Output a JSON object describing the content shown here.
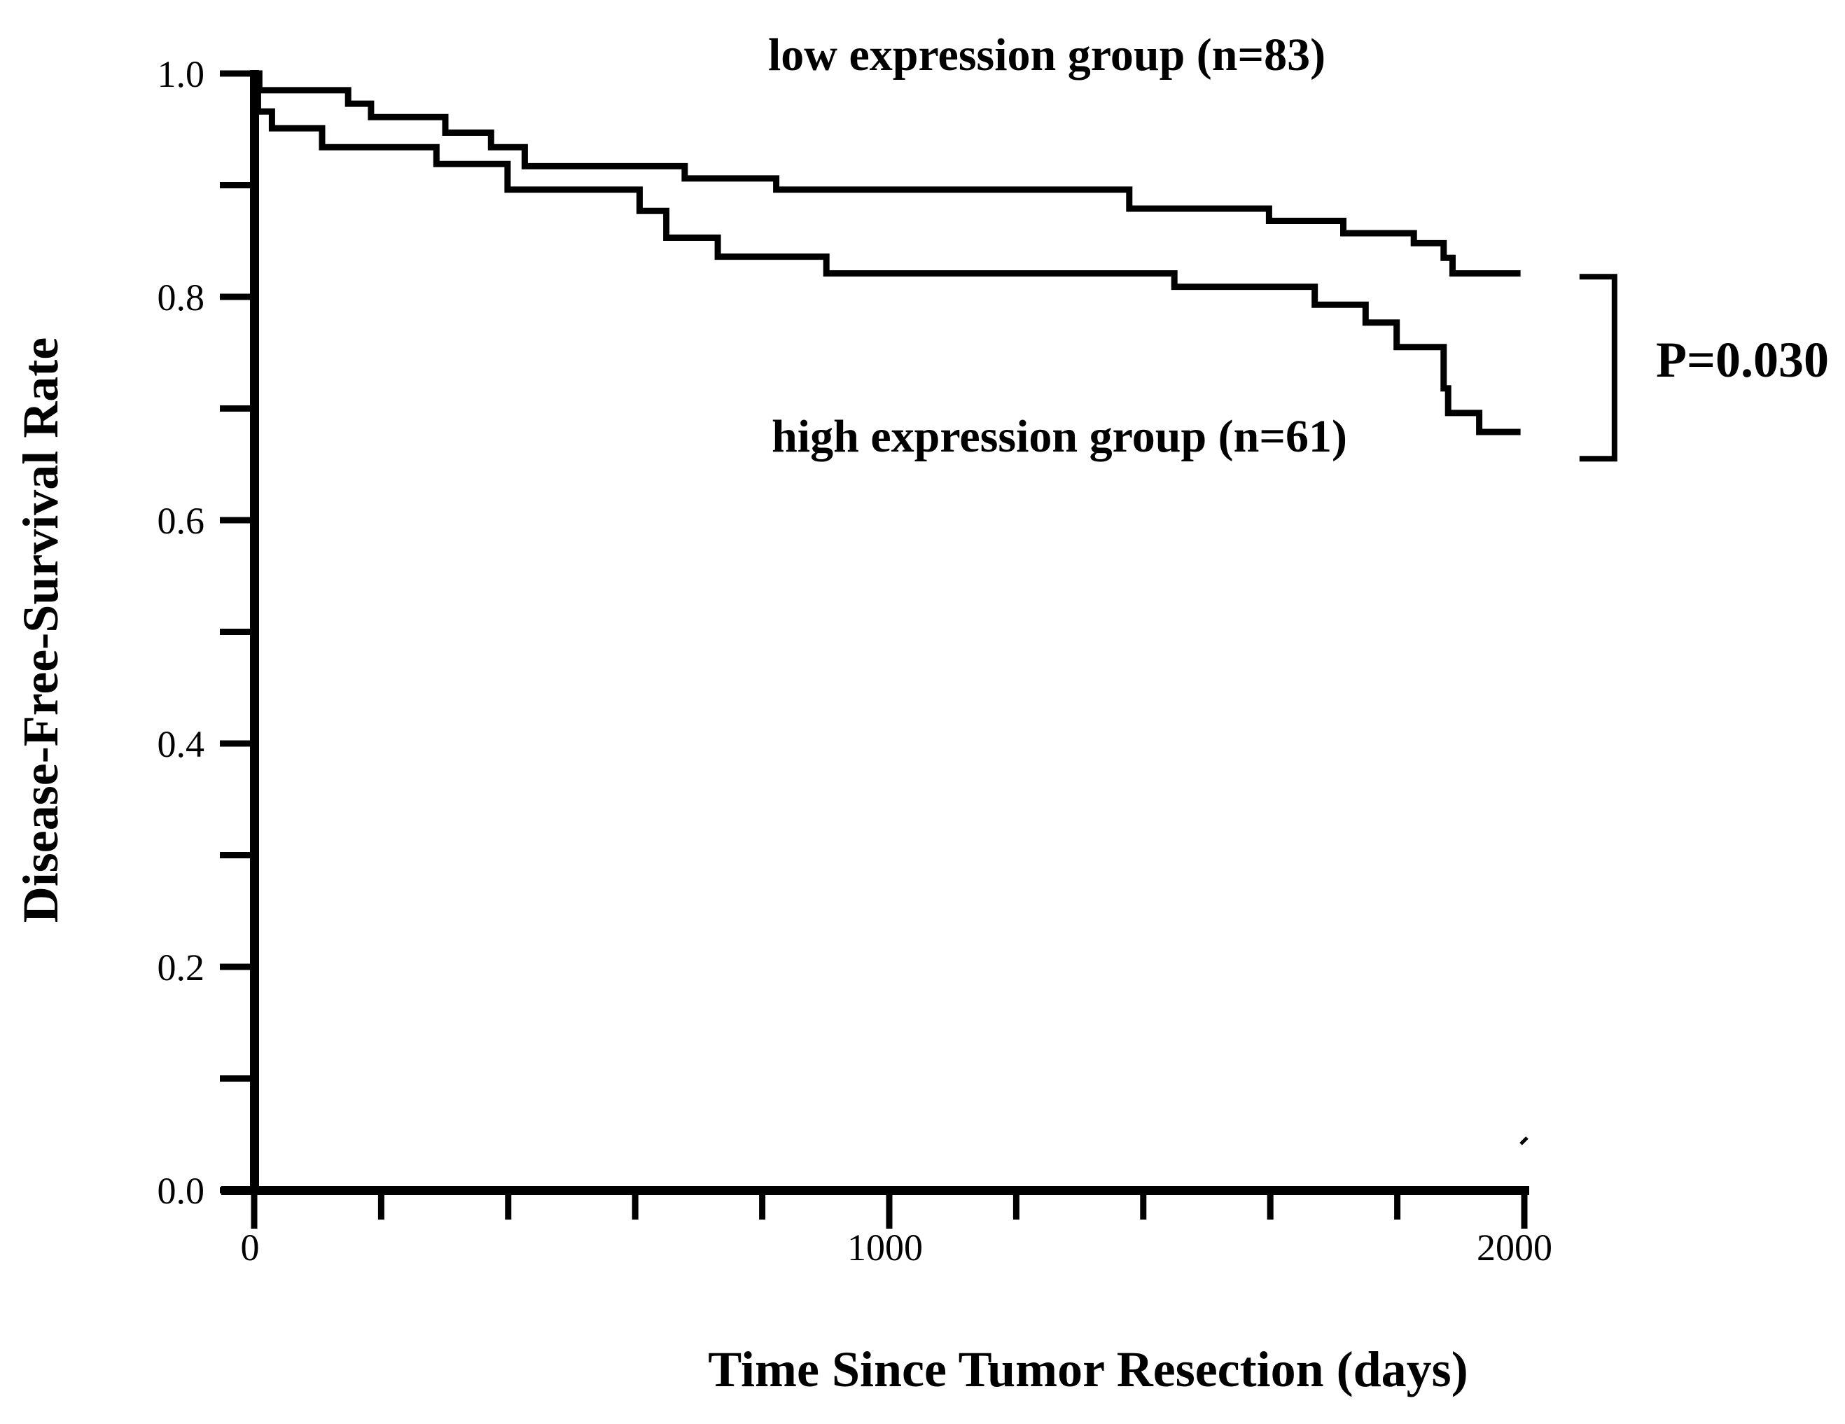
{
  "figure": {
    "group_low_label": "low expression group (n=83)",
    "group_high_label": "high expression group (n=61)",
    "p_value_label": "P=0.030",
    "x_axis_label": "Time Since Tumor Resection (days)",
    "y_axis_label": "Disease-Free-Survival Rate",
    "line_color": "#000000",
    "background_color": "#ffffff"
  },
  "chart_data": {
    "type": "line",
    "style": "kaplan-meier-step",
    "title": "",
    "xlabel": "Time Since Tumor Resection (days)",
    "ylabel": "Disease-Free-Survival Rate",
    "xlim": [
      0,
      2010
    ],
    "ylim": [
      0.0,
      1.0
    ],
    "grid": false,
    "legend": "inline-annotations",
    "x_major_ticks": [
      0,
      1000,
      2000
    ],
    "x_minor_ticks": [
      200,
      400,
      600,
      800,
      1200,
      1400,
      1600,
      1800
    ],
    "y_major_ticks": [
      1.0,
      0.8,
      0.6,
      0.4,
      0.2,
      0.0
    ],
    "y_minor_ticks": [
      0.9,
      0.7,
      0.5,
      0.3,
      0.1
    ],
    "series": [
      {
        "name": "low expression group",
        "n": 83,
        "end_day": 1994,
        "points": [
          [
            0,
            1.0
          ],
          [
            8,
            0.985
          ],
          [
            148,
            0.973
          ],
          [
            184,
            0.961
          ],
          [
            301,
            0.947
          ],
          [
            373,
            0.934
          ],
          [
            426,
            0.917
          ],
          [
            678,
            0.906
          ],
          [
            822,
            0.896
          ],
          [
            1378,
            0.879
          ],
          [
            1598,
            0.868
          ],
          [
            1715,
            0.857
          ],
          [
            1826,
            0.848
          ],
          [
            1873,
            0.835
          ],
          [
            1887,
            0.821
          ]
        ]
      },
      {
        "name": "high expression group",
        "n": 61,
        "end_day": 1994,
        "points": [
          [
            0,
            1.0
          ],
          [
            6,
            0.966
          ],
          [
            28,
            0.951
          ],
          [
            107,
            0.934
          ],
          [
            287,
            0.919
          ],
          [
            399,
            0.896
          ],
          [
            607,
            0.877
          ],
          [
            649,
            0.853
          ],
          [
            730,
            0.836
          ],
          [
            901,
            0.821
          ],
          [
            1449,
            0.809
          ],
          [
            1670,
            0.793
          ],
          [
            1750,
            0.777
          ],
          [
            1799,
            0.755
          ],
          [
            1873,
            0.718
          ],
          [
            1880,
            0.696
          ],
          [
            1929,
            0.679
          ]
        ]
      }
    ],
    "annotation": {
      "p_value": "P=0.030",
      "bracket_x_day": 2142,
      "bracket_top_rate": 0.818,
      "bracket_bottom_rate": 0.655
    }
  }
}
